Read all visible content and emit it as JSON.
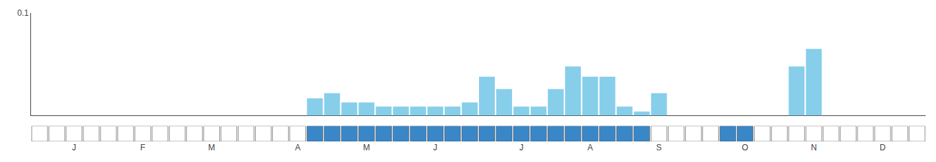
{
  "chart_data": {
    "type": "bar",
    "categories": [
      null,
      null,
      "J",
      null,
      null,
      null,
      "F",
      null,
      null,
      null,
      "M",
      null,
      null,
      null,
      null,
      "A",
      null,
      null,
      null,
      "M",
      null,
      null,
      null,
      "J",
      null,
      null,
      null,
      null,
      "J",
      null,
      null,
      null,
      "A",
      null,
      null,
      null,
      "S",
      null,
      null,
      null,
      null,
      "O",
      null,
      null,
      null,
      "N",
      null,
      null,
      null,
      "D",
      null,
      null
    ],
    "series": [
      {
        "type": "bar",
        "color": "#87ceeb",
        "values": [
          0,
          0,
          0,
          0,
          0,
          0,
          0,
          0,
          0,
          0,
          0,
          0,
          0,
          0,
          0,
          0,
          0.017,
          0.022,
          0.013,
          0.013,
          0.009,
          0.009,
          0.009,
          0.009,
          0.009,
          0.013,
          0.038,
          0.026,
          0.009,
          0.009,
          0.026,
          0.048,
          0.038,
          0.038,
          0.009,
          0.004,
          0.022,
          0,
          0,
          0,
          0,
          0,
          0,
          0,
          0.048,
          0.065,
          0,
          0,
          0,
          0,
          0,
          0
        ]
      },
      {
        "type": "cells",
        "colors": [
          "#ffffff",
          "#ffffff",
          "#ffffff",
          "#ffffff",
          "#ffffff",
          "#ffffff",
          "#ffffff",
          "#ffffff",
          "#ffffff",
          "#ffffff",
          "#ffffff",
          "#ffffff",
          "#ffffff",
          "#ffffff",
          "#ffffff",
          "#ffffff",
          "#3a87c8",
          "#3a87c8",
          "#3a87c8",
          "#3a87c8",
          "#3a87c8",
          "#3a87c8",
          "#3a87c8",
          "#3a87c8",
          "#3a87c8",
          "#3a87c8",
          "#3a87c8",
          "#3a87c8",
          "#3a87c8",
          "#3a87c8",
          "#3a87c8",
          "#3a87c8",
          "#3a87c8",
          "#3a87c8",
          "#3a87c8",
          "#3a87c8",
          "#ffffff",
          "#ffffff",
          "#ffffff",
          "#ffffff",
          "#3a87c8",
          "#3a87c8",
          "#ffffff",
          "#ffffff",
          "#ffffff",
          "#ffffff",
          "#ffffff",
          "#ffffff",
          "#ffffff",
          "#ffffff",
          "#ffffff",
          "#ffffff"
        ]
      }
    ],
    "ylim": [
      0,
      0.1
    ],
    "yticks": [
      0.1
    ],
    "grid": false
  }
}
